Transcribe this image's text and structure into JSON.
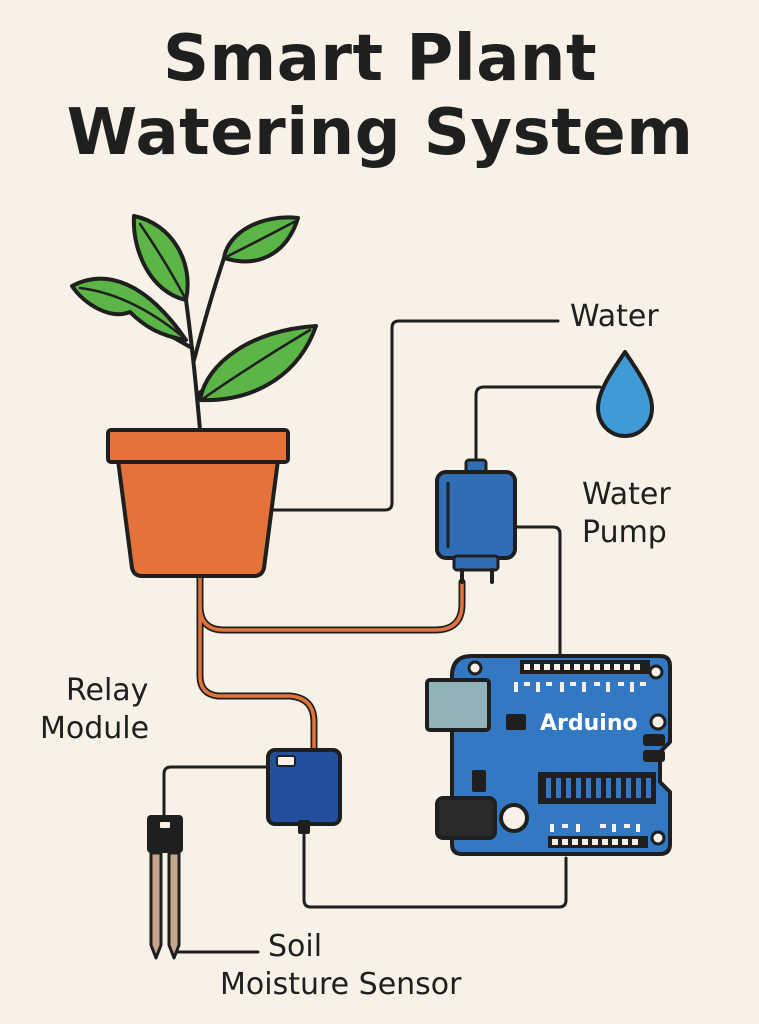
{
  "title": {
    "line1": "Smart Plant",
    "line2": "Watering System"
  },
  "labels": {
    "water": "Water",
    "pump_line1": "Water",
    "pump_line2": "Pump",
    "relay_line1": "Relay",
    "relay_line2": "Module",
    "soil_line1": "Soil",
    "soil_line2": "Moisture Sensor",
    "arduino": "Arduino"
  },
  "colors": {
    "background": "#f7f1e7",
    "leaf": "#5cb547",
    "pot": "#e3733a",
    "tube": "#e3733a",
    "water_drop": "#3f9ad6",
    "pump": "#2f6db5",
    "relay": "#244f9c",
    "arduino_board": "#3278c2",
    "line": "#1f1f1f"
  }
}
